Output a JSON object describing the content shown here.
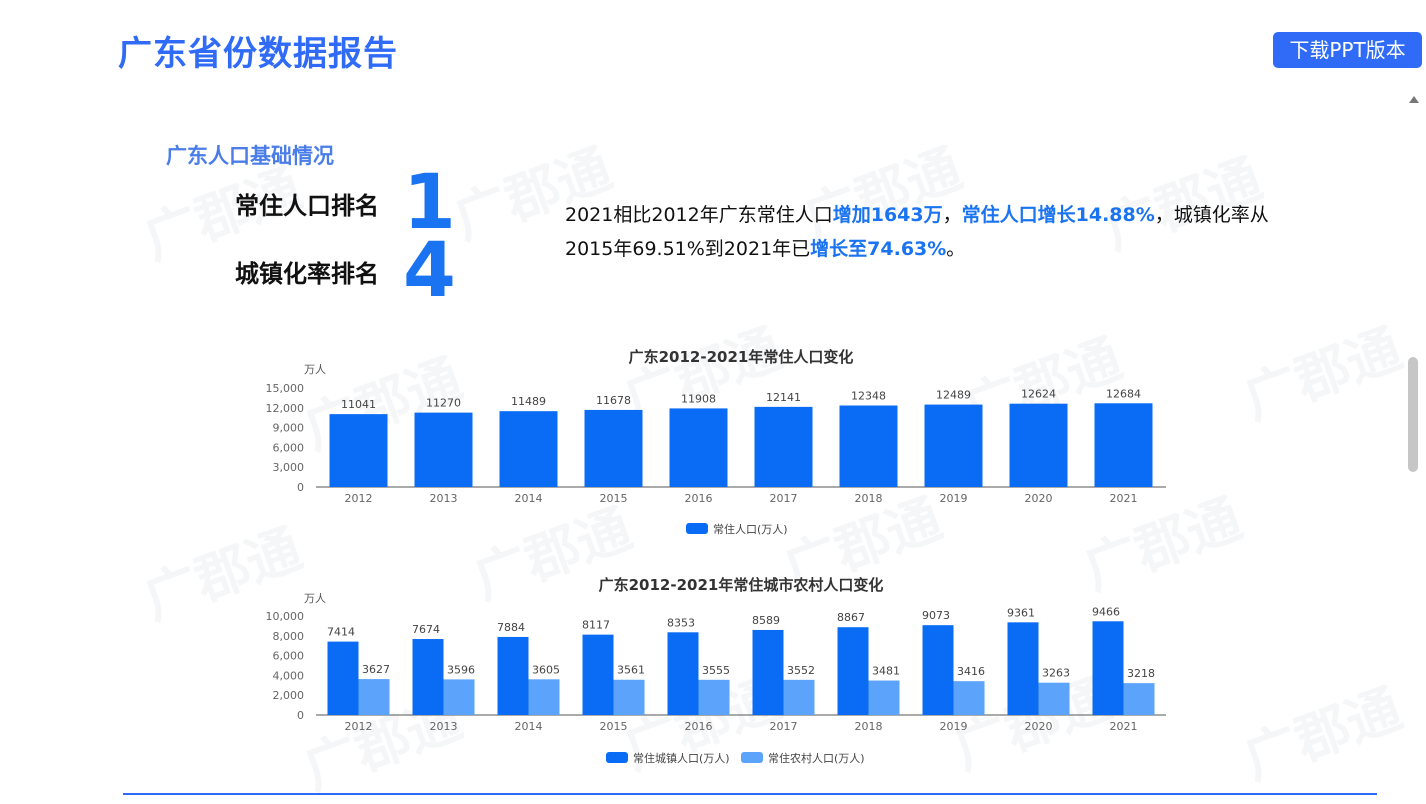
{
  "header": {
    "title": "广东省份数据报告",
    "download_label": "下载PPT版本"
  },
  "watermark": "广郡通",
  "basics": {
    "section_title": "广东人口基础情况",
    "rank1_label": "常住人口排名",
    "rank1_value": "1",
    "rank2_label": "城镇化率排名",
    "rank2_value": "4",
    "summary": {
      "p1": "2021相比2012年广东常住人口",
      "h1": "增加1643万",
      "p2": "，",
      "h2": "常住人口增长14.88%",
      "p3": "，城镇化率从2015年69.51%到2021年已",
      "h3": "增长至74.63%",
      "p4": "。"
    }
  },
  "colors": {
    "accent": "#2f6bf6",
    "bar_main": "#0a6cf5",
    "bar_light": "#5ba3fb"
  },
  "chart_data": [
    {
      "type": "bar",
      "title": "广东2012-2021年常住人口变化",
      "ylabel": "万人",
      "ylim": [
        0,
        15000
      ],
      "yticks": [
        "0",
        "3,000",
        "6,000",
        "9,000",
        "12,000",
        "15,000"
      ],
      "categories": [
        "2012",
        "2013",
        "2014",
        "2015",
        "2016",
        "2017",
        "2018",
        "2019",
        "2020",
        "2021"
      ],
      "series": [
        {
          "name": "常住人口(万人)",
          "values": [
            11041,
            11270,
            11489,
            11678,
            11908,
            12141,
            12348,
            12489,
            12624,
            12684
          ]
        }
      ],
      "legend": "bottom-center"
    },
    {
      "type": "bar",
      "title": "广东2012-2021年常住城市农村人口变化",
      "ylabel": "万人",
      "ylim": [
        0,
        10000
      ],
      "yticks": [
        "0",
        "2,000",
        "4,000",
        "6,000",
        "8,000",
        "10,000"
      ],
      "categories": [
        "2012",
        "2013",
        "2014",
        "2015",
        "2016",
        "2017",
        "2018",
        "2019",
        "2020",
        "2021"
      ],
      "series": [
        {
          "name": "常住城镇人口(万人)",
          "values": [
            7414,
            7674,
            7884,
            8117,
            8353,
            8589,
            8867,
            9073,
            9361,
            9466
          ]
        },
        {
          "name": "常住农村人口(万人)",
          "values": [
            3627,
            3596,
            3605,
            3561,
            3555,
            3552,
            3481,
            3416,
            3263,
            3218
          ]
        }
      ],
      "legend": "bottom-center"
    }
  ]
}
